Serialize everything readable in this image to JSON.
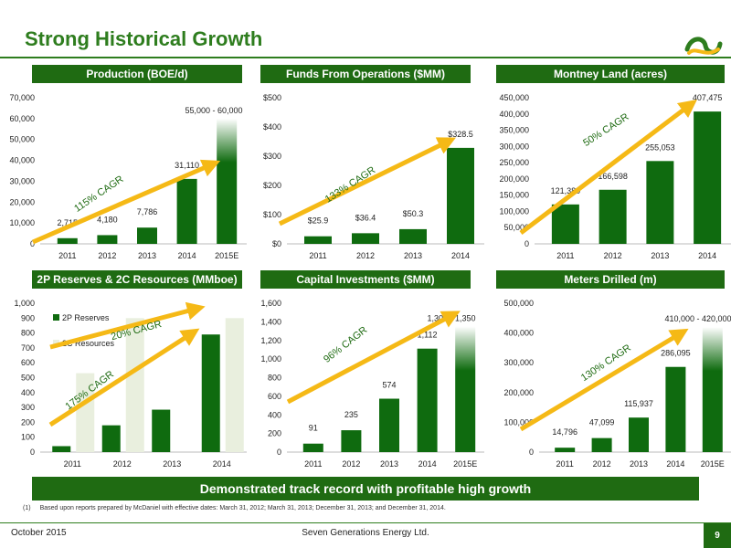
{
  "slide": {
    "title": "Strong Historical Growth",
    "banner": "Demonstrated track record with profitable high growth",
    "footnote_num": "(1)",
    "footnote": "Based upon reports prepared by McDaniel with effective dates: March 31, 2012; March 31, 2013; December 31, 2013; and December 31, 2014.",
    "footer_date": "October 2015",
    "footer_company": "Seven Generations Energy Ltd.",
    "page_number": "9"
  },
  "colors": {
    "bar": "#0f6b0f",
    "bar_light": "#e9efde",
    "arrow": "#f5b916",
    "header": "#1f6b12",
    "title": "#2e7d1e"
  },
  "panels": [
    {
      "header": "Production (BOE/d)",
      "sup": ""
    },
    {
      "header": "Funds From Operations ($MM)",
      "sup": ""
    },
    {
      "header": "Montney Land (acres)",
      "sup": ""
    },
    {
      "header": "2P Reserves & 2C Resources (MMboe)",
      "sup": "(1)"
    },
    {
      "header": "Capital Investments ($MM)",
      "sup": ""
    },
    {
      "header": "Meters Drilled (m)",
      "sup": ""
    }
  ],
  "chart_data": [
    {
      "type": "bar",
      "categories": [
        "2011",
        "2012",
        "2013",
        "2014",
        "2015E"
      ],
      "values": [
        2715,
        4180,
        7786,
        31110,
        60000
      ],
      "value_labels": [
        "2,715",
        "4,180",
        "7,786",
        "31,110",
        "55,000 - 60,000"
      ],
      "range_low": [
        null,
        null,
        null,
        null,
        55000
      ],
      "ylim": [
        0,
        70000
      ],
      "yticks": [
        "0",
        "10,000",
        "20,000",
        "30,000",
        "40,000",
        "50,000",
        "60,000",
        "70,000"
      ],
      "annotation": "115% CAGR",
      "grid": false
    },
    {
      "type": "bar",
      "categories": [
        "2011",
        "2012",
        "2013",
        "2014"
      ],
      "values": [
        25.9,
        36.4,
        50.3,
        328.5
      ],
      "value_labels": [
        "$25.9",
        "$36.4",
        "$50.3",
        "$328.5"
      ],
      "range_low": [
        null,
        null,
        null,
        null
      ],
      "ylim": [
        0,
        500
      ],
      "yticks": [
        "$0",
        "$100",
        "$200",
        "$300",
        "$400",
        "$500"
      ],
      "annotation": "133% CAGR",
      "grid": false
    },
    {
      "type": "bar",
      "categories": [
        "2011",
        "2012",
        "2013",
        "2014"
      ],
      "values": [
        121380,
        166598,
        255053,
        407475
      ],
      "value_labels": [
        "121,380",
        "166,598",
        "255,053",
        "407,475"
      ],
      "range_low": [
        null,
        null,
        null,
        null
      ],
      "ylim": [
        0,
        450000
      ],
      "yticks": [
        "0",
        "50,000",
        "100,000",
        "150,000",
        "200,000",
        "250,000",
        "300,000",
        "350,000",
        "400,000",
        "450,000"
      ],
      "annotation": "50% CAGR",
      "grid": false
    },
    {
      "type": "bar",
      "categories": [
        "2011",
        "2012",
        "2013",
        "2014"
      ],
      "series": [
        {
          "name": "2P Reserves",
          "values": [
            40,
            180,
            285,
            790
          ]
        },
        {
          "name": "2C Resources",
          "values": [
            530,
            900,
            null,
            900
          ]
        }
      ],
      "ylim": [
        0,
        1000
      ],
      "yticks": [
        "0",
        "100",
        "200",
        "300",
        "400",
        "500",
        "600",
        "700",
        "800",
        "900",
        "1,000"
      ],
      "annotations": [
        "20% CAGR",
        "175% CAGR"
      ],
      "legend": "top-left",
      "grid": false
    },
    {
      "type": "bar",
      "categories": [
        "2011",
        "2012",
        "2013",
        "2014",
        "2015E"
      ],
      "values": [
        91,
        235,
        574,
        1112,
        1350
      ],
      "value_labels": [
        "91",
        "235",
        "574",
        "1,112",
        "1,300 - 1,350"
      ],
      "range_low": [
        null,
        null,
        null,
        null,
        1300
      ],
      "ylim": [
        0,
        1600
      ],
      "yticks": [
        "0",
        "200",
        "400",
        "600",
        "800",
        "1,000",
        "1,200",
        "1,400",
        "1,600"
      ],
      "annotation": "96% CAGR",
      "grid": false
    },
    {
      "type": "bar",
      "categories": [
        "2011",
        "2012",
        "2013",
        "2014",
        "2015E"
      ],
      "values": [
        14796,
        47099,
        115937,
        286095,
        420000
      ],
      "value_labels": [
        "14,796",
        "47,099",
        "115,937",
        "286,095",
        "410,000 - 420,000"
      ],
      "range_low": [
        null,
        null,
        null,
        null,
        410000
      ],
      "ylim": [
        0,
        500000
      ],
      "yticks": [
        "0",
        "100,000",
        "200,000",
        "300,000",
        "400,000",
        "500,000"
      ],
      "annotation": "130% CAGR",
      "grid": false
    }
  ]
}
